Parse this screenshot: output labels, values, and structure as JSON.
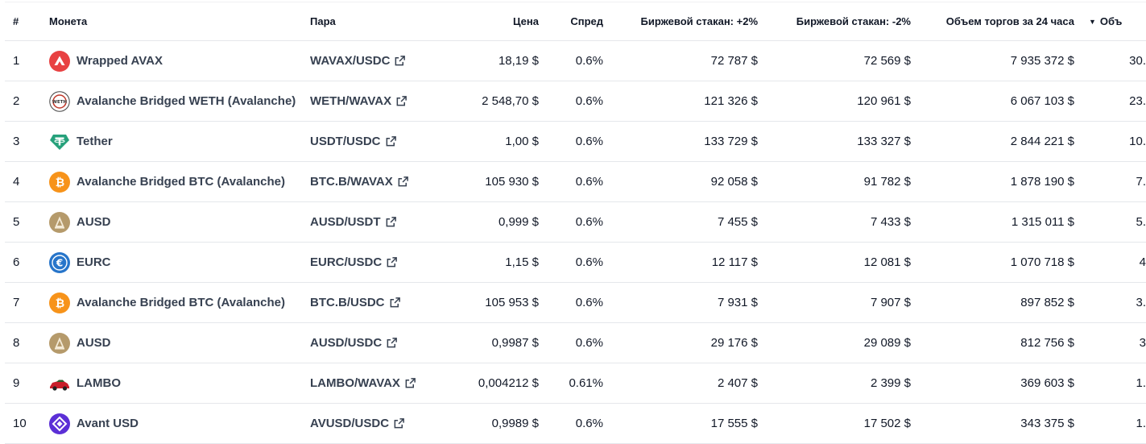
{
  "header": {
    "rank": "#",
    "coin": "Монета",
    "pair": "Пара",
    "price": "Цена",
    "spread": "Спред",
    "depth_plus": "Биржевой стакан: +2%",
    "depth_minus": "Биржевой стакан: -2%",
    "volume": "Объем торгов за 24 часа",
    "volume_pct_sort": "▼",
    "volume_pct": "Объ"
  },
  "colors": {
    "avax": "#e84142",
    "tether": "#26a17b",
    "btc": "#f7931a",
    "ausd": "#b59a6b",
    "eurc": "#2775ca",
    "avant": "#5b2fd6",
    "lambo": "#c81e2a"
  },
  "rows": [
    {
      "rank": "1",
      "icon": "wrapped-avax-icon",
      "coin": "Wrapped AVAX",
      "pair": "WAVAX/USDC",
      "price": "18,19 $",
      "spread": "0.6%",
      "depth_plus": "72 787 $",
      "depth_minus": "72 569 $",
      "volume": "7 935 372 $",
      "volume_pct": "30."
    },
    {
      "rank": "2",
      "icon": "weth-icon",
      "coin": "Avalanche Bridged WETH (Avalanche)",
      "pair": "WETH/WAVAX",
      "price": "2 548,70 $",
      "spread": "0.6%",
      "depth_plus": "121 326 $",
      "depth_minus": "120 961 $",
      "volume": "6 067 103 $",
      "volume_pct": "23."
    },
    {
      "rank": "3",
      "icon": "tether-icon",
      "coin": "Tether",
      "pair": "USDT/USDC",
      "price": "1,00 $",
      "spread": "0.6%",
      "depth_plus": "133 729 $",
      "depth_minus": "133 327 $",
      "volume": "2 844 221 $",
      "volume_pct": "10."
    },
    {
      "rank": "4",
      "icon": "btc-icon",
      "coin": "Avalanche Bridged BTC (Avalanche)",
      "pair": "BTC.B/WAVAX",
      "price": "105 930 $",
      "spread": "0.6%",
      "depth_plus": "92 058 $",
      "depth_minus": "91 782 $",
      "volume": "1 878 190 $",
      "volume_pct": "7."
    },
    {
      "rank": "5",
      "icon": "ausd-icon",
      "coin": "AUSD",
      "pair": "AUSD/USDT",
      "price": "0,999 $",
      "spread": "0.6%",
      "depth_plus": "7 455 $",
      "depth_minus": "7 433 $",
      "volume": "1 315 011 $",
      "volume_pct": "5."
    },
    {
      "rank": "6",
      "icon": "eurc-icon",
      "coin": "EURC",
      "pair": "EURC/USDC",
      "price": "1,15 $",
      "spread": "0.6%",
      "depth_plus": "12 117 $",
      "depth_minus": "12 081 $",
      "volume": "1 070 718 $",
      "volume_pct": "4"
    },
    {
      "rank": "7",
      "icon": "btc-icon",
      "coin": "Avalanche Bridged BTC (Avalanche)",
      "pair": "BTC.B/USDC",
      "price": "105 953 $",
      "spread": "0.6%",
      "depth_plus": "7 931 $",
      "depth_minus": "7 907 $",
      "volume": "897 852 $",
      "volume_pct": "3."
    },
    {
      "rank": "8",
      "icon": "ausd-icon",
      "coin": "AUSD",
      "pair": "AUSD/USDC",
      "price": "0,9987 $",
      "spread": "0.6%",
      "depth_plus": "29 176 $",
      "depth_minus": "29 089 $",
      "volume": "812 756 $",
      "volume_pct": "3"
    },
    {
      "rank": "9",
      "icon": "lambo-icon",
      "coin": "LAMBO",
      "pair": "LAMBO/WAVAX",
      "price": "0,004212 $",
      "spread": "0.61%",
      "depth_plus": "2 407 $",
      "depth_minus": "2 399 $",
      "volume": "369 603 $",
      "volume_pct": "1."
    },
    {
      "rank": "10",
      "icon": "avant-usd-icon",
      "coin": "Avant USD",
      "pair": "AVUSD/USDC",
      "price": "0,9989 $",
      "spread": "0.6%",
      "depth_plus": "17 555 $",
      "depth_minus": "17 502 $",
      "volume": "343 375 $",
      "volume_pct": "1."
    }
  ]
}
